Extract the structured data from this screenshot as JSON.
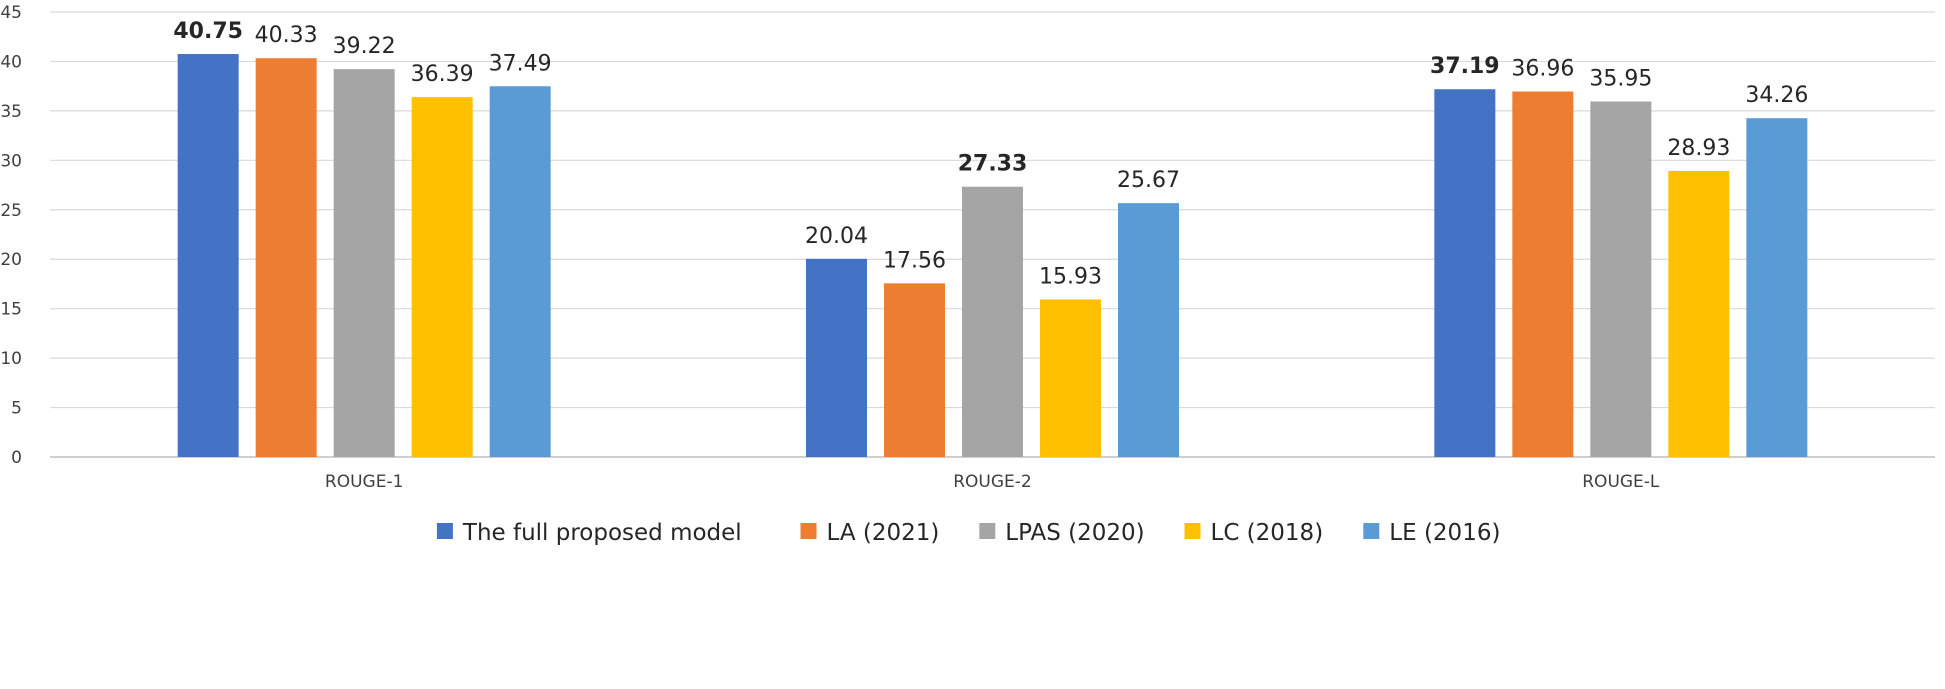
{
  "chart_data": {
    "type": "bar",
    "title": "",
    "xlabel": "",
    "ylabel": "",
    "ylim": [
      0,
      45
    ],
    "yticks": [
      0,
      5,
      10,
      15,
      20,
      25,
      30,
      35,
      40,
      45
    ],
    "grid": true,
    "legend_position": "bottom",
    "categories": [
      "ROUGE-1",
      "ROUGE-2",
      "ROUGE-L"
    ],
    "series": [
      {
        "name": "The full proposed model",
        "color": "#4472c4",
        "values": [
          40.75,
          20.04,
          37.19
        ],
        "labels": [
          "40.75",
          "20.04",
          "37.19"
        ]
      },
      {
        "name": "LA (2021)",
        "color": "#ed7d31",
        "values": [
          40.33,
          17.56,
          36.96
        ],
        "labels": [
          "40.33",
          "17.56",
          "36.96"
        ]
      },
      {
        "name": "LPAS (2020)",
        "color": "#a5a5a5",
        "values": [
          39.22,
          27.33,
          35.95
        ],
        "labels": [
          "39.22",
          "27.33",
          "35.95"
        ]
      },
      {
        "name": "LC (2018)",
        "color": "#ffc000",
        "values": [
          36.39,
          15.93,
          28.93
        ],
        "labels": [
          "36.39",
          "15.93",
          "28.93"
        ]
      },
      {
        "name": "LE (2016)",
        "color": "#5b9bd5",
        "values": [
          37.49,
          25.67,
          34.26
        ],
        "labels": [
          "37.49",
          "25.67",
          "34.26"
        ]
      }
    ],
    "bold_labels": [
      {
        "series": 0,
        "category": 0
      },
      {
        "series": 2,
        "category": 1
      },
      {
        "series": 0,
        "category": 2
      }
    ]
  }
}
